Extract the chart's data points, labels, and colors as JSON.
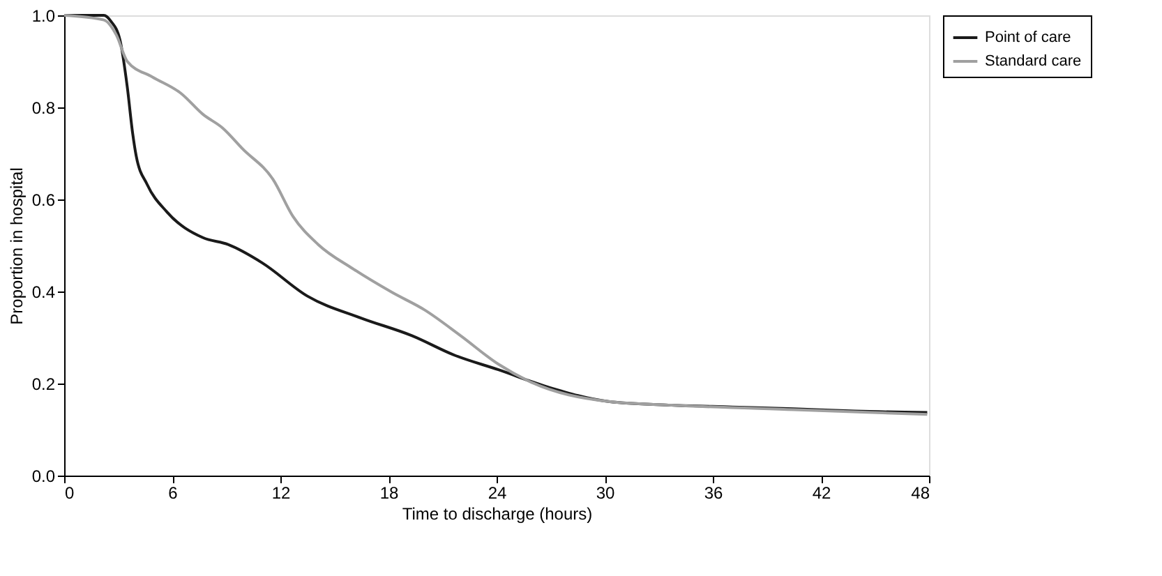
{
  "chart_data": {
    "type": "line",
    "xlabel": "Time to discharge (hours)",
    "ylabel": "Proportion in hospital",
    "xlim": [
      0,
      48
    ],
    "xticks": [
      0,
      6,
      12,
      18,
      24,
      30,
      36,
      42,
      48
    ],
    "ylim": [
      0,
      1
    ],
    "yticks": [
      {
        "value": 0,
        "label": "0.0"
      },
      0.2,
      0.4,
      0.6,
      0.8,
      {
        "value": 1,
        "label": "1.0"
      }
    ],
    "grid": false,
    "legend": "right",
    "marker": "none",
    "line_style": "solid",
    "series": [
      {
        "name": "Point of care",
        "color": "#1a1a1a",
        "x": [
          0,
          2.2,
          2.6,
          3.1,
          3.5,
          3.8,
          4.0,
          4.6,
          5.7,
          7.7,
          9.1,
          11.0,
          13.5,
          16.5,
          19.3,
          21.7,
          24.1,
          26.8,
          30.2,
          33.7,
          37.1,
          40.5,
          43.9,
          47.9
        ],
        "values": [
          1.0,
          1.0,
          0.987,
          0.946,
          0.845,
          0.744,
          0.694,
          0.633,
          0.573,
          0.517,
          0.502,
          0.462,
          0.39,
          0.342,
          0.304,
          0.261,
          0.23,
          0.193,
          0.161,
          0.153,
          0.149,
          0.145,
          0.14,
          0.137
        ]
      },
      {
        "name": "Standard care",
        "color": "#a0a0a0",
        "x": [
          0,
          2.2,
          2.9,
          3.5,
          4.9,
          6.5,
          7.7,
          8.8,
          9.9,
          11.6,
          12.7,
          14.1,
          16.0,
          18.2,
          20.0,
          22.0,
          24.1,
          25.8,
          30.2,
          33.7,
          40.5,
          47.9
        ],
        "values": [
          1.0,
          0.99,
          0.957,
          0.9,
          0.866,
          0.83,
          0.785,
          0.755,
          0.71,
          0.643,
          0.563,
          0.502,
          0.45,
          0.398,
          0.36,
          0.304,
          0.242,
          0.205,
          0.161,
          0.153,
          0.143,
          0.133
        ]
      }
    ]
  }
}
